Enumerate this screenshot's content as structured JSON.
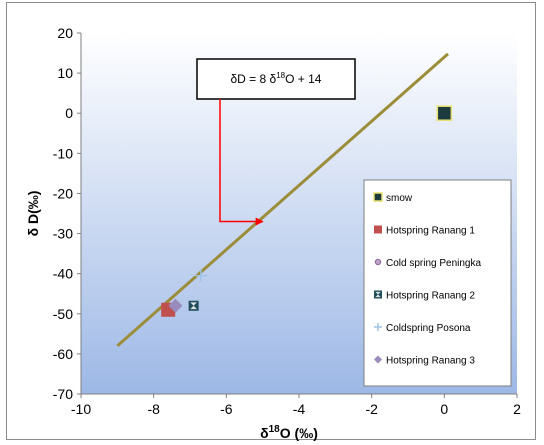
{
  "chart_data": {
    "type": "scatter",
    "title": "",
    "xlabel": "δ18O (‰)",
    "ylabel": "δ D(‰)",
    "xlim": [
      -10,
      2
    ],
    "ylim": [
      -70,
      20
    ],
    "x_ticks": [
      -10,
      -8,
      -6,
      -4,
      -2,
      0,
      2
    ],
    "y_ticks": [
      20,
      10,
      0,
      -10,
      -20,
      -30,
      -40,
      -50,
      -60,
      -70
    ],
    "grid": false,
    "plot_background": "gradient white-to-blue",
    "legend_position": "right",
    "series": [
      {
        "name": "smow",
        "marker": "square",
        "color": "#1b3b3f",
        "points": [
          [
            0,
            0
          ]
        ]
      },
      {
        "name": "Hotspring Ranang 1",
        "marker": "square",
        "color": "#c0504d",
        "points": [
          [
            -7.6,
            -49
          ]
        ]
      },
      {
        "name": "Cold spring Peningka",
        "marker": "circle",
        "color": "#c0a0c8",
        "points": []
      },
      {
        "name": "Hotspring Ranang 2",
        "marker": "hourglass-square",
        "color": "#1f4e5a",
        "points": [
          [
            -6.9,
            -48
          ]
        ]
      },
      {
        "name": "Coldspring Posona",
        "marker": "plus",
        "color": "#9dc3e6",
        "points": [
          [
            -6.7,
            -40.5
          ]
        ]
      },
      {
        "name": "Hotspring Ranang 3",
        "marker": "diamond",
        "color": "#9b8bbd",
        "points": [
          [
            -7.4,
            -48
          ]
        ]
      }
    ],
    "line": {
      "label": "δD = 8 δ18O + 14",
      "color": "#9c8d3a",
      "x_range": [
        -9,
        0.1
      ]
    },
    "annotation": {
      "text": "δD = 8 δ18O + 14",
      "arrow_color": "#ff0000",
      "arrow_target": [
        -5,
        -27
      ]
    }
  },
  "colors": {
    "plot_top": "#ffffff",
    "plot_bottom": "#9db8e6",
    "border": "#8c8c8c"
  }
}
